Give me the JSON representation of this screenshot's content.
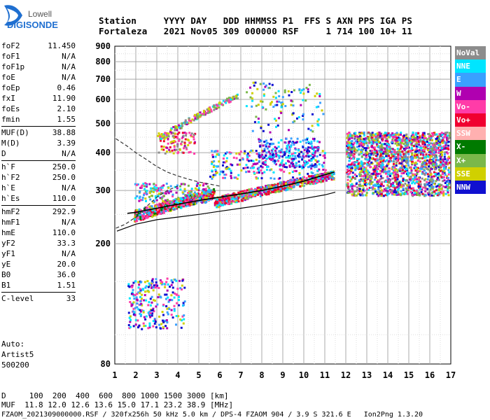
{
  "logo": {
    "line1": "Lowell",
    "line2": "DIGISONDE"
  },
  "header": {
    "labels": [
      "Station",
      "YYYY",
      "DAY",
      "DDD",
      "HHMMSS",
      "P1",
      "FFS",
      "S",
      "AXN",
      "PPS",
      "IGA",
      "PS"
    ],
    "values": [
      "Fortaleza",
      "2021",
      "Nov05",
      "309",
      "000000",
      "RSF",
      "",
      "1",
      "714",
      "100",
      "10+",
      "11"
    ]
  },
  "parameters": [
    [
      {
        "name": "foF2",
        "value": "11.450"
      },
      {
        "name": "foF1",
        "value": "N/A"
      },
      {
        "name": "foF1p",
        "value": "N/A"
      },
      {
        "name": "foE",
        "value": "N/A"
      },
      {
        "name": "foEp",
        "value": "0.46"
      },
      {
        "name": "fxI",
        "value": "11.90"
      },
      {
        "name": "foEs",
        "value": "2.10"
      },
      {
        "name": "fmin",
        "value": "1.55"
      }
    ],
    [
      {
        "name": "MUF(D)",
        "value": "38.88"
      },
      {
        "name": "M(D)",
        "value": "3.39"
      },
      {
        "name": "D",
        "value": "N/A"
      }
    ],
    [
      {
        "name": "h`F",
        "value": "250.0"
      },
      {
        "name": "h`F2",
        "value": "250.0"
      },
      {
        "name": "h`E",
        "value": "N/A"
      },
      {
        "name": "h`Es",
        "value": "110.0"
      }
    ],
    [
      {
        "name": "hmF2",
        "value": "292.9"
      },
      {
        "name": "hmF1",
        "value": "N/A"
      },
      {
        "name": "hmE",
        "value": "110.0"
      },
      {
        "name": "yF2",
        "value": "33.3"
      },
      {
        "name": "yF1",
        "value": "N/A"
      },
      {
        "name": "yE",
        "value": "20.0"
      },
      {
        "name": "B0",
        "value": "36.0"
      },
      {
        "name": "B1",
        "value": "1.51"
      }
    ],
    [
      {
        "name": "C-level",
        "value": "33"
      }
    ]
  ],
  "auto": {
    "line1": "Auto:",
    "line2": "Artist5",
    "line3": "500200"
  },
  "legend": [
    {
      "label": "NoVal",
      "color": "#8c8c8c"
    },
    {
      "label": "NNE",
      "color": "#00e5ff"
    },
    {
      "label": "E",
      "color": "#3aa0ff"
    },
    {
      "label": "W",
      "color": "#b000b0"
    },
    {
      "label": "Vo-",
      "color": "#ff3ca8"
    },
    {
      "label": "Vo+",
      "color": "#f00030"
    },
    {
      "label": "SSW",
      "color": "#ffb0b0"
    },
    {
      "label": "X-",
      "color": "#007a00"
    },
    {
      "label": "X+",
      "color": "#7ab84a"
    },
    {
      "label": "SSE",
      "color": "#d0d000"
    },
    {
      "label": "NNW",
      "color": "#1010d0"
    }
  ],
  "footer": {
    "line1": "D     100  200  400  600  800 1000 1500 3000 [km]",
    "line2": "MUF  11.8 12.0 12.6 13.6 15.0 17.1 23.2 38.9 [MHz]",
    "line3": "FZAOM_2021309000000.RSF / 320fx256h 50 kHz 5.0 km / DPS-4 FZAOM 904 / 3.9 S 321.6 E   Ion2Png 1.3.20"
  },
  "chart_data": {
    "type": "scatter",
    "title": "",
    "xlabel": "",
    "ylabel": "",
    "xlim": [
      1,
      17
    ],
    "ylim": [
      80,
      900
    ],
    "x_ticks": [
      "1",
      "2",
      "3",
      "4",
      "5",
      "6",
      "7",
      "8",
      "9",
      "10",
      "11",
      "12",
      "13",
      "14",
      "15",
      "16",
      "17"
    ],
    "y_ticks": [
      "80",
      "200",
      "300",
      "400",
      "500",
      "600",
      "700",
      "800",
      "900"
    ],
    "grid": true,
    "legend_position": "right",
    "profile_line": {
      "x": [
        1.6,
        2,
        2.5,
        3,
        3.5,
        4,
        5,
        6,
        7,
        8,
        9,
        10,
        10.5,
        11,
        11.45
      ],
      "y": [
        252,
        254,
        258,
        262,
        266,
        270,
        278,
        285,
        292,
        300,
        310,
        322,
        330,
        338,
        345
      ]
    },
    "lower_line": {
      "x": [
        1.1,
        2,
        3,
        4,
        5,
        6,
        7,
        8,
        9,
        10,
        11,
        11.5
      ],
      "y": [
        220,
        232,
        240,
        245,
        250,
        256,
        262,
        268,
        275,
        282,
        290,
        296
      ]
    },
    "dashed_line": {
      "x": [
        1.05,
        1.6,
        2,
        2.5,
        3,
        3.5,
        4,
        4.5,
        5,
        5.5,
        6
      ],
      "y": [
        445,
        420,
        400,
        380,
        360,
        345,
        335,
        327,
        320,
        315,
        310
      ]
    },
    "dashed_line_low": {
      "x": [
        1.05,
        1.5,
        2,
        2.5,
        3,
        3.5,
        4
      ],
      "y": [
        225,
        232,
        245,
        265,
        285,
        300,
        310
      ]
    },
    "point_clusters": [
      {
        "x": [
          1.9,
          5.7
        ],
        "y": [
          248,
          295
        ],
        "slope": 1,
        "density": 700,
        "colors": [
          5,
          4,
          5,
          4,
          9,
          7,
          1,
          2
        ]
      },
      {
        "x": [
          5.7,
          11.4
        ],
        "y": [
          275,
          340
        ],
        "slope": 1,
        "density": 700,
        "colors": [
          5,
          4,
          5,
          3,
          9,
          1,
          2,
          8
        ]
      },
      {
        "x": [
          1.9,
          5.5
        ],
        "y": [
          275,
          320
        ],
        "slope": 0,
        "density": 200,
        "colors": [
          1,
          2,
          9,
          4,
          3,
          8
        ]
      },
      {
        "x": [
          1.6,
          4.3
        ],
        "y": [
          105,
          155
        ],
        "slope": 0,
        "density": 260,
        "colors": [
          3,
          2,
          10,
          1,
          4,
          9
        ]
      },
      {
        "x": [
          3,
          4.8
        ],
        "y": [
          400,
          470
        ],
        "slope": 0,
        "density": 110,
        "colors": [
          3,
          4,
          5,
          9,
          0
        ]
      },
      {
        "x": [
          3.1,
          6.8
        ],
        "y": [
          450,
          620
        ],
        "slope": 1,
        "density": 160,
        "colors": [
          3,
          9,
          4,
          8,
          1,
          0
        ]
      },
      {
        "x": [
          5.5,
          11.0
        ],
        "y": [
          330,
          410
        ],
        "slope": 0,
        "density": 260,
        "colors": [
          1,
          2,
          3,
          9,
          10,
          4
        ]
      },
      {
        "x": [
          7.8,
          10.7
        ],
        "y": [
          360,
          450
        ],
        "slope": 0,
        "density": 220,
        "colors": [
          10,
          1,
          2,
          3
        ]
      },
      {
        "x": [
          7.2,
          10.9
        ],
        "y": [
          470,
          690
        ],
        "slope": 0,
        "density": 120,
        "colors": [
          9,
          1,
          8,
          3,
          2,
          10
        ]
      },
      {
        "x": [
          12.0,
          16.9
        ],
        "y": [
          290,
          470
        ],
        "slope": 0,
        "density": 1900,
        "colors": [
          3,
          4,
          5,
          1,
          2,
          9,
          10,
          8,
          0
        ]
      }
    ]
  }
}
